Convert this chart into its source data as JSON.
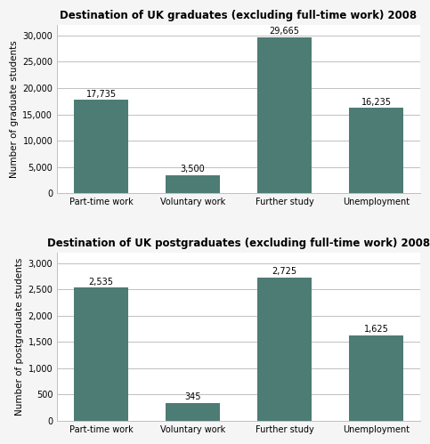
{
  "grad_title": "Destination of UK graduates (excluding full-time work) 2008",
  "postgrad_title": "Destination of UK postgraduates (excluding full-time work) 2008",
  "categories": [
    "Part-time work",
    "Voluntary work",
    "Further study",
    "Unemployment"
  ],
  "grad_values": [
    17735,
    3500,
    29665,
    16235
  ],
  "postgrad_values": [
    2535,
    345,
    2725,
    1625
  ],
  "grad_labels": [
    "17,735",
    "3,500",
    "29,665",
    "16,235"
  ],
  "postgrad_labels": [
    "2,535",
    "345",
    "2,725",
    "1,625"
  ],
  "bar_color": "#4d7c74",
  "grad_ylabel": "Number of graduate students",
  "postgrad_ylabel": "Number of postgraduate students",
  "grad_ylim": [
    0,
    32000
  ],
  "postgrad_ylim": [
    0,
    3200
  ],
  "grad_yticks": [
    0,
    5000,
    10000,
    15000,
    20000,
    25000,
    30000
  ],
  "postgrad_yticks": [
    0,
    500,
    1000,
    1500,
    2000,
    2500,
    3000
  ],
  "title_fontsize": 8.5,
  "label_fontsize": 7.0,
  "tick_fontsize": 7.0,
  "ylabel_fontsize": 7.5,
  "bar_width": 0.6,
  "background_color": "#ffffff",
  "grid_color": "#c0c0c0",
  "figure_bg": "#f5f5f5"
}
